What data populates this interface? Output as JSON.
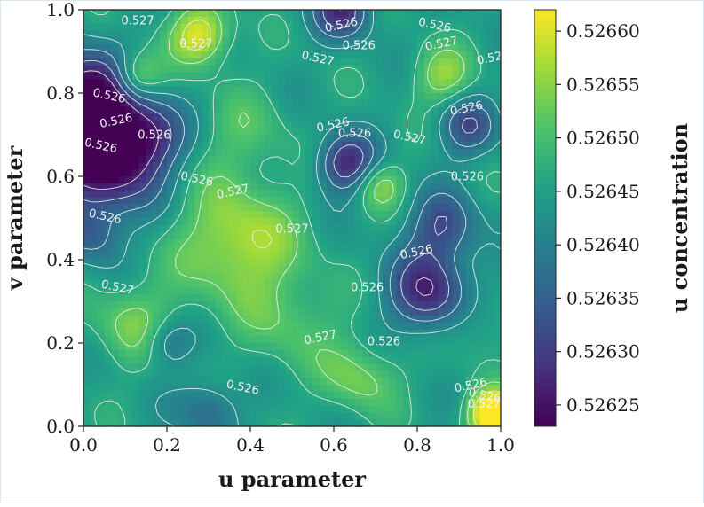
{
  "chart_data": {
    "type": "heatmap",
    "title": "",
    "xlabel": "u parameter",
    "ylabel": "v parameter",
    "xlim": [
      0.0,
      1.0
    ],
    "ylim": [
      0.0,
      1.0
    ],
    "x_ticks": [
      "0.0",
      "0.2",
      "0.4",
      "0.6",
      "0.8",
      "1.0"
    ],
    "y_ticks": [
      "0.0",
      "0.2",
      "0.4",
      "0.6",
      "0.8",
      "1.0"
    ],
    "colormap": "viridis",
    "colorbar": {
      "label": "u concentration",
      "min": 0.52623,
      "max": 0.52662,
      "ticks": [
        "0.52625",
        "0.52630",
        "0.52635",
        "0.52640",
        "0.52645",
        "0.52650",
        "0.52655",
        "0.52660"
      ]
    },
    "contour_levels_labeled": [
      "0.526",
      "0.527"
    ],
    "contour_labels": [
      {
        "text": "0.526",
        "x": 0.62,
        "y": 0.955
      },
      {
        "text": "0.526",
        "x": 0.66,
        "y": 0.905
      },
      {
        "text": "0.526",
        "x": 0.84,
        "y": 0.955
      },
      {
        "text": "0.527",
        "x": 0.86,
        "y": 0.91
      },
      {
        "text": "0.527",
        "x": 0.27,
        "y": 0.91
      },
      {
        "text": "0.527",
        "x": 0.56,
        "y": 0.875
      },
      {
        "text": "0.52",
        "x": 0.975,
        "y": 0.875
      },
      {
        "text": "0.527",
        "x": 0.13,
        "y": 0.965
      },
      {
        "text": "0.526",
        "x": 0.06,
        "y": 0.785
      },
      {
        "text": "0.526",
        "x": 0.08,
        "y": 0.725
      },
      {
        "text": "0.526",
        "x": 0.17,
        "y": 0.69
      },
      {
        "text": "0.526",
        "x": 0.04,
        "y": 0.665
      },
      {
        "text": "0.526",
        "x": 0.6,
        "y": 0.715
      },
      {
        "text": "0.526",
        "x": 0.65,
        "y": 0.695
      },
      {
        "text": "0.527",
        "x": 0.78,
        "y": 0.685
      },
      {
        "text": "0.526",
        "x": 0.92,
        "y": 0.755
      },
      {
        "text": "0.526",
        "x": 0.92,
        "y": 0.59
      },
      {
        "text": "0.526",
        "x": 0.27,
        "y": 0.585
      },
      {
        "text": "0.527",
        "x": 0.36,
        "y": 0.555
      },
      {
        "text": "0.527",
        "x": 0.5,
        "y": 0.465
      },
      {
        "text": "0.526",
        "x": 0.05,
        "y": 0.495
      },
      {
        "text": "0.526",
        "x": 0.8,
        "y": 0.41
      },
      {
        "text": "0.526",
        "x": 0.68,
        "y": 0.325
      },
      {
        "text": "0.527",
        "x": 0.08,
        "y": 0.325
      },
      {
        "text": "0.527",
        "x": 0.57,
        "y": 0.205
      },
      {
        "text": "0.526",
        "x": 0.72,
        "y": 0.195
      },
      {
        "text": "0.526",
        "x": 0.38,
        "y": 0.085
      },
      {
        "text": "0.526",
        "x": 0.93,
        "y": 0.09
      },
      {
        "text": "0.527",
        "x": 0.96,
        "y": 0.045
      },
      {
        "text": "0.526",
        "x": 0.96,
        "y": 0.065
      }
    ],
    "field_blobs": [
      {
        "x": 0.0,
        "y": 0.78,
        "amp": -0.00026,
        "s": 0.08
      },
      {
        "x": 0.05,
        "y": 0.64,
        "amp": -0.00024,
        "s": 0.09
      },
      {
        "x": 0.16,
        "y": 0.7,
        "amp": -0.00012,
        "s": 0.06
      },
      {
        "x": 0.63,
        "y": 0.63,
        "amp": -0.00018,
        "s": 0.05
      },
      {
        "x": 0.83,
        "y": 0.32,
        "amp": -0.00018,
        "s": 0.07
      },
      {
        "x": 0.86,
        "y": 0.48,
        "amp": -0.00012,
        "s": 0.06
      },
      {
        "x": 0.92,
        "y": 0.72,
        "amp": -0.00012,
        "s": 0.05
      },
      {
        "x": 0.62,
        "y": 1.0,
        "amp": -0.00016,
        "s": 0.05
      },
      {
        "x": 0.2,
        "y": 0.2,
        "amp": -8e-05,
        "s": 0.04
      },
      {
        "x": 0.3,
        "y": 0.04,
        "amp": -9e-05,
        "s": 0.05
      },
      {
        "x": 0.68,
        "y": 0.15,
        "amp": -4e-05,
        "s": 0.05
      },
      {
        "x": 0.02,
        "y": 0.46,
        "amp": -9e-05,
        "s": 0.05
      },
      {
        "x": 0.28,
        "y": 0.94,
        "amp": 0.00016,
        "s": 0.05
      },
      {
        "x": 0.13,
        "y": 0.84,
        "amp": 0.00012,
        "s": 0.04
      },
      {
        "x": 0.37,
        "y": 0.44,
        "amp": 0.00013,
        "s": 0.1
      },
      {
        "x": 0.67,
        "y": 0.13,
        "amp": 0.00012,
        "s": 0.06
      },
      {
        "x": 0.98,
        "y": 0.03,
        "amp": 0.00024,
        "s": 0.04
      },
      {
        "x": 0.86,
        "y": 0.84,
        "amp": 0.0001,
        "s": 0.05
      },
      {
        "x": 0.71,
        "y": 0.58,
        "amp": 0.0001,
        "s": 0.04
      },
      {
        "x": 0.12,
        "y": 0.25,
        "amp": 8e-05,
        "s": 0.07
      },
      {
        "x": 0.38,
        "y": 0.7,
        "amp": 5e-05,
        "s": 0.08
      },
      {
        "x": 0.5,
        "y": 0.25,
        "amp": 6e-05,
        "s": 0.08
      },
      {
        "x": 0.93,
        "y": 0.25,
        "amp": 5e-05,
        "s": 0.06
      }
    ]
  }
}
